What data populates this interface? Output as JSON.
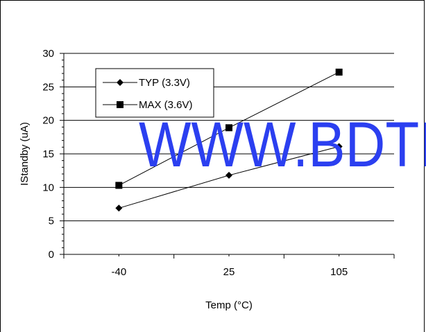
{
  "chart_data": {
    "type": "line",
    "title": "",
    "xlabel": "Temp (°C)",
    "ylabel": "IStandby (uA)",
    "categories": [
      "-40",
      "25",
      "105"
    ],
    "ylim": [
      0,
      30
    ],
    "yticks": [
      0,
      5,
      10,
      15,
      20,
      25,
      30
    ],
    "grid": "horizontal",
    "legend_position": "top-left",
    "series": [
      {
        "name": "TYP (3.3V)",
        "marker": "diamond",
        "color": "#000000",
        "values": [
          6.9,
          11.8,
          16.1
        ]
      },
      {
        "name": "MAX (3.6V)",
        "marker": "square",
        "color": "#000000",
        "values": [
          10.3,
          18.9,
          27.2
        ]
      }
    ]
  },
  "watermark": {
    "text": "WWW.BDTI",
    "color": "#2b3ff0"
  }
}
